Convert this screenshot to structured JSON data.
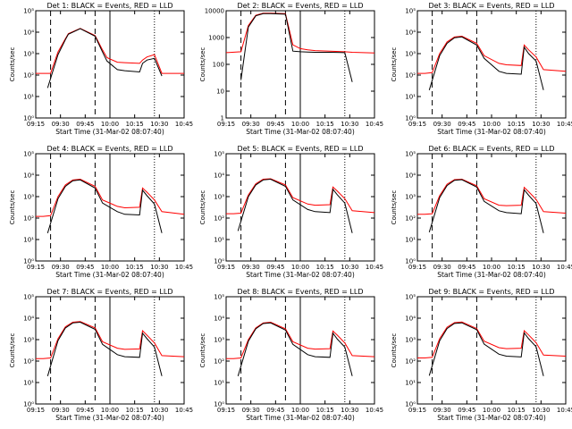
{
  "chart_data": [
    {
      "type": "line",
      "title": "Det 1: BLACK = Events, RED = LLD",
      "xlabel": "Start Time (31-Mar-02 08:07:40)",
      "ylabel": "Counts/sec",
      "x_ticks": [
        "09:15",
        "09:30",
        "09:45",
        "10:00",
        "10:15",
        "10:30",
        "10:45"
      ],
      "y_ticks": [
        "10⁰",
        "10¹",
        "10²",
        "10³",
        "10⁴",
        "10⁵"
      ],
      "yscale": "log",
      "ylim": [
        1,
        100000
      ],
      "xlim_min": [
        0,
        100
      ],
      "grid": false,
      "legend": "none",
      "series": [
        {
          "color": "#ff0000",
          "x": [
            0,
            5,
            10,
            15,
            20,
            22,
            30,
            40,
            45,
            48,
            55,
            60,
            70,
            72,
            75,
            80,
            85,
            100
          ],
          "y": [
            120,
            120,
            120,
            1200,
            5000,
            8500,
            15000,
            7000,
            1500,
            650,
            400,
            380,
            350,
            500,
            700,
            900,
            120,
            120
          ]
        },
        {
          "color": "#000000",
          "x": [
            8,
            15,
            20,
            22,
            30,
            40,
            45,
            48,
            55,
            60,
            70,
            72,
            75,
            80,
            85
          ],
          "y": [
            25,
            900,
            4500,
            8000,
            14500,
            6500,
            1200,
            450,
            180,
            160,
            140,
            350,
            500,
            600,
            90
          ]
        }
      ],
      "vlines": [
        {
          "x": 10,
          "style": "dashed"
        },
        {
          "x": 40,
          "style": "dashed"
        },
        {
          "x": 50,
          "style": "solid"
        },
        {
          "x": 80,
          "style": "dotted"
        }
      ]
    },
    {
      "type": "line",
      "title": "Det 2: BLACK = Events, RED = LLD",
      "xlabel": "Start Time (31-Mar-02 08:07:40)",
      "ylabel": "Counts/sec",
      "x_ticks": [
        "09:15",
        "09:30",
        "09:45",
        "10:00",
        "10:15",
        "10:30",
        "10:45"
      ],
      "y_ticks": [
        "1",
        "10",
        "100",
        "1000",
        "10000"
      ],
      "yscale": "log",
      "ylim": [
        1,
        15000
      ],
      "xlim_min": [
        0,
        100
      ],
      "grid": false,
      "legend": "none",
      "series": [
        {
          "color": "#ff0000",
          "x": [
            0,
            10,
            15,
            20,
            25,
            30,
            40,
            45,
            50,
            55,
            60,
            70,
            80,
            85,
            100
          ],
          "y": [
            350,
            380,
            4000,
            10000,
            12000,
            12000,
            11500,
            700,
            500,
            450,
            420,
            400,
            380,
            360,
            340
          ]
        },
        {
          "color": "#000000",
          "x": [
            10,
            15,
            20,
            25,
            30,
            40,
            45,
            50,
            55,
            60,
            70,
            80,
            85
          ],
          "y": [
            30,
            3500,
            9500,
            11500,
            11500,
            11000,
            400,
            380,
            370,
            360,
            360,
            350,
            25
          ]
        }
      ],
      "vlines": [
        {
          "x": 10,
          "style": "dashed"
        },
        {
          "x": 40,
          "style": "dashed"
        },
        {
          "x": 50,
          "style": "solid"
        },
        {
          "x": 80,
          "style": "dotted"
        }
      ]
    },
    {
      "type": "line",
      "title": "Det 3: BLACK = Events, RED = LLD",
      "xlabel": "Start Time (31-Mar-02 08:07:40)",
      "ylabel": "Counts/sec",
      "x_ticks": [
        "09:15",
        "09:30",
        "09:45",
        "10:00",
        "10:15",
        "10:30",
        "10:45"
      ],
      "y_ticks": [
        "10⁰",
        "10¹",
        "10²",
        "10³",
        "10⁴",
        "10⁵"
      ],
      "yscale": "log",
      "ylim": [
        1,
        100000
      ],
      "xlim_min": [
        0,
        100
      ],
      "grid": false,
      "legend": "none",
      "series": [
        {
          "color": "#ff0000",
          "x": [
            0,
            5,
            10,
            15,
            20,
            25,
            30,
            40,
            45,
            55,
            60,
            70,
            72,
            75,
            80,
            85,
            100
          ],
          "y": [
            120,
            120,
            130,
            1000,
            3500,
            6000,
            6500,
            3000,
            800,
            350,
            300,
            280,
            2500,
            1500,
            700,
            180,
            150
          ]
        },
        {
          "color": "#000000",
          "x": [
            8,
            15,
            20,
            25,
            30,
            40,
            45,
            55,
            60,
            70,
            72,
            75,
            80,
            85
          ],
          "y": [
            20,
            800,
            3000,
            5500,
            6000,
            2500,
            600,
            150,
            120,
            110,
            2000,
            1000,
            450,
            20
          ]
        }
      ],
      "vlines": [
        {
          "x": 10,
          "style": "dashed"
        },
        {
          "x": 40,
          "style": "dashed"
        },
        {
          "x": 80,
          "style": "dotted"
        }
      ]
    },
    {
      "type": "line",
      "title": "Det 4: BLACK = Events, RED = LLD",
      "xlabel": "Start Time (31-Mar-02 08:07:40)",
      "ylabel": "Counts/sec",
      "x_ticks": [
        "09:15",
        "09:30",
        "09:45",
        "10:00",
        "10:15",
        "10:30",
        "10:45"
      ],
      "y_ticks": [
        "10⁰",
        "10¹",
        "10²",
        "10³",
        "10⁴",
        "10⁵"
      ],
      "yscale": "log",
      "ylim": [
        1,
        100000
      ],
      "xlim_min": [
        0,
        100
      ],
      "grid": false,
      "legend": "none",
      "series": [
        {
          "color": "#ff0000",
          "x": [
            0,
            5,
            10,
            15,
            20,
            25,
            30,
            40,
            45,
            55,
            60,
            70,
            72,
            75,
            80,
            85,
            100
          ],
          "y": [
            120,
            120,
            130,
            1000,
            3500,
            6000,
            6500,
            3000,
            700,
            350,
            300,
            320,
            2500,
            1600,
            700,
            200,
            150
          ]
        },
        {
          "color": "#000000",
          "x": [
            8,
            15,
            20,
            25,
            30,
            40,
            45,
            55,
            60,
            70,
            72,
            75,
            80,
            85
          ],
          "y": [
            20,
            800,
            3000,
            5500,
            6000,
            2500,
            500,
            200,
            150,
            140,
            2000,
            1100,
            450,
            20
          ]
        }
      ],
      "vlines": [
        {
          "x": 10,
          "style": "dashed"
        },
        {
          "x": 40,
          "style": "dashed"
        },
        {
          "x": 50,
          "style": "solid"
        },
        {
          "x": 80,
          "style": "dotted"
        }
      ]
    },
    {
      "type": "line",
      "title": "Det 5: BLACK = Events, RED = LLD",
      "xlabel": "Start Time (31-Mar-02 08:07:40)",
      "ylabel": "Counts/sec",
      "x_ticks": [
        "09:15",
        "09:30",
        "09:45",
        "10:00",
        "10:15",
        "10:30",
        "10:45"
      ],
      "y_ticks": [
        "10⁰",
        "10¹",
        "10²",
        "10³",
        "10⁴",
        "10⁵"
      ],
      "yscale": "log",
      "ylim": [
        1,
        100000
      ],
      "xlim_min": [
        0,
        100
      ],
      "grid": false,
      "legend": "none",
      "series": [
        {
          "color": "#ff0000",
          "x": [
            0,
            5,
            10,
            15,
            20,
            25,
            30,
            40,
            45,
            55,
            60,
            70,
            72,
            75,
            80,
            85,
            100
          ],
          "y": [
            160,
            160,
            170,
            1200,
            4000,
            6500,
            6800,
            3500,
            900,
            450,
            400,
            420,
            2800,
            1800,
            800,
            220,
            180
          ]
        },
        {
          "color": "#000000",
          "x": [
            8,
            15,
            20,
            25,
            30,
            40,
            45,
            55,
            60,
            70,
            72,
            75,
            80,
            85
          ],
          "y": [
            25,
            1000,
            3500,
            6000,
            6500,
            3000,
            700,
            250,
            200,
            180,
            2200,
            1200,
            500,
            20
          ]
        }
      ],
      "vlines": [
        {
          "x": 10,
          "style": "dashed"
        },
        {
          "x": 40,
          "style": "dashed"
        },
        {
          "x": 50,
          "style": "solid"
        },
        {
          "x": 80,
          "style": "dotted"
        }
      ]
    },
    {
      "type": "line",
      "title": "Det 6: BLACK = Events, RED = LLD",
      "xlabel": "Start Time (31-Mar-02 08:07:40)",
      "ylabel": "Counts/sec",
      "x_ticks": [
        "09:15",
        "09:30",
        "09:45",
        "10:00",
        "10:15",
        "10:30",
        "10:45"
      ],
      "y_ticks": [
        "10⁰",
        "10¹",
        "10²",
        "10³",
        "10⁴",
        "10⁵"
      ],
      "yscale": "log",
      "ylim": [
        1,
        100000
      ],
      "xlim_min": [
        0,
        100
      ],
      "grid": false,
      "legend": "none",
      "series": [
        {
          "color": "#ff0000",
          "x": [
            0,
            5,
            10,
            15,
            20,
            25,
            30,
            40,
            45,
            55,
            60,
            70,
            72,
            75,
            80,
            85,
            100
          ],
          "y": [
            150,
            150,
            160,
            1100,
            3800,
            6200,
            6500,
            3200,
            800,
            400,
            380,
            400,
            2700,
            1700,
            750,
            200,
            170
          ]
        },
        {
          "color": "#000000",
          "x": [
            8,
            15,
            20,
            25,
            30,
            40,
            45,
            55,
            60,
            70,
            72,
            75,
            80,
            85
          ],
          "y": [
            22,
            900,
            3300,
            5800,
            6200,
            2800,
            600,
            220,
            180,
            160,
            2100,
            1150,
            480,
            20
          ]
        }
      ],
      "vlines": [
        {
          "x": 10,
          "style": "dashed"
        },
        {
          "x": 40,
          "style": "dashed"
        },
        {
          "x": 80,
          "style": "dotted"
        }
      ]
    },
    {
      "type": "line",
      "title": "Det 7: BLACK = Events, RED = LLD",
      "xlabel": "Start Time (31-Mar-02 08:07:40)",
      "ylabel": "Counts/sec",
      "x_ticks": [
        "09:15",
        "09:30",
        "09:45",
        "10:00",
        "10:15",
        "10:30",
        "10:45"
      ],
      "y_ticks": [
        "10⁰",
        "10¹",
        "10²",
        "10³",
        "10⁴",
        "10⁵"
      ],
      "yscale": "log",
      "ylim": [
        1,
        100000
      ],
      "xlim_min": [
        0,
        100
      ],
      "grid": false,
      "legend": "none",
      "series": [
        {
          "color": "#ff0000",
          "x": [
            0,
            5,
            10,
            15,
            20,
            25,
            30,
            40,
            45,
            55,
            60,
            70,
            72,
            75,
            80,
            85,
            100
          ],
          "y": [
            130,
            130,
            140,
            1100,
            4000,
            6500,
            7000,
            3500,
            800,
            400,
            350,
            370,
            2600,
            1600,
            700,
            180,
            160
          ]
        },
        {
          "color": "#000000",
          "x": [
            8,
            15,
            20,
            25,
            30,
            40,
            45,
            55,
            60,
            70,
            72,
            75,
            80,
            85
          ],
          "y": [
            20,
            900,
            3500,
            6000,
            6500,
            3000,
            600,
            200,
            160,
            150,
            2000,
            1100,
            450,
            20
          ]
        }
      ],
      "vlines": [
        {
          "x": 10,
          "style": "dashed"
        },
        {
          "x": 40,
          "style": "dashed"
        },
        {
          "x": 50,
          "style": "solid"
        },
        {
          "x": 80,
          "style": "dotted"
        }
      ]
    },
    {
      "type": "line",
      "title": "Det 8: BLACK = Events, RED = LLD",
      "xlabel": "Start Time (31-Mar-02 08:07:40)",
      "ylabel": "Counts/sec",
      "x_ticks": [
        "09:15",
        "09:30",
        "09:45",
        "10:00",
        "10:15",
        "10:30",
        "10:45"
      ],
      "y_ticks": [
        "10⁰",
        "10¹",
        "10²",
        "10³",
        "10⁴",
        "10⁵"
      ],
      "yscale": "log",
      "ylim": [
        1,
        100000
      ],
      "xlim_min": [
        0,
        100
      ],
      "grid": false,
      "legend": "none",
      "series": [
        {
          "color": "#ff0000",
          "x": [
            0,
            5,
            10,
            15,
            20,
            25,
            30,
            40,
            45,
            55,
            60,
            70,
            72,
            75,
            80,
            85,
            100
          ],
          "y": [
            130,
            130,
            140,
            1000,
            3500,
            6000,
            6500,
            3200,
            800,
            400,
            360,
            380,
            2500,
            1600,
            700,
            180,
            160
          ]
        },
        {
          "color": "#000000",
          "x": [
            8,
            15,
            20,
            25,
            30,
            40,
            45,
            55,
            60,
            70,
            72,
            75,
            80,
            85
          ],
          "y": [
            20,
            850,
            3200,
            5600,
            6000,
            2800,
            600,
            200,
            160,
            150,
            2000,
            1050,
            450,
            20
          ]
        }
      ],
      "vlines": [
        {
          "x": 10,
          "style": "dashed"
        },
        {
          "x": 40,
          "style": "dashed"
        },
        {
          "x": 50,
          "style": "solid"
        },
        {
          "x": 80,
          "style": "dotted"
        }
      ]
    },
    {
      "type": "line",
      "title": "Det 9: BLACK = Events, RED = LLD",
      "xlabel": "Start Time (31-Mar-02 08:07:40)",
      "ylabel": "Counts/sec",
      "x_ticks": [
        "09:15",
        "09:30",
        "09:45",
        "10:00",
        "10:15",
        "10:30",
        "10:45"
      ],
      "y_ticks": [
        "10⁰",
        "10¹",
        "10²",
        "10³",
        "10⁴",
        "10⁵"
      ],
      "yscale": "log",
      "ylim": [
        1,
        100000
      ],
      "xlim_min": [
        0,
        100
      ],
      "grid": false,
      "legend": "none",
      "series": [
        {
          "color": "#ff0000",
          "x": [
            0,
            5,
            10,
            15,
            20,
            25,
            30,
            40,
            45,
            55,
            60,
            70,
            72,
            75,
            80,
            85,
            100
          ],
          "y": [
            140,
            140,
            150,
            1100,
            3800,
            6200,
            6600,
            3300,
            850,
            420,
            380,
            400,
            2600,
            1650,
            720,
            190,
            170
          ]
        },
        {
          "color": "#000000",
          "x": [
            8,
            15,
            20,
            25,
            30,
            40,
            45,
            55,
            60,
            70,
            72,
            75,
            80,
            85
          ],
          "y": [
            21,
            880,
            3300,
            5700,
            6100,
            2900,
            620,
            210,
            170,
            155,
            2050,
            1100,
            470,
            20
          ]
        }
      ],
      "vlines": [
        {
          "x": 10,
          "style": "dashed"
        },
        {
          "x": 40,
          "style": "dashed"
        },
        {
          "x": 80,
          "style": "dotted"
        }
      ]
    }
  ]
}
